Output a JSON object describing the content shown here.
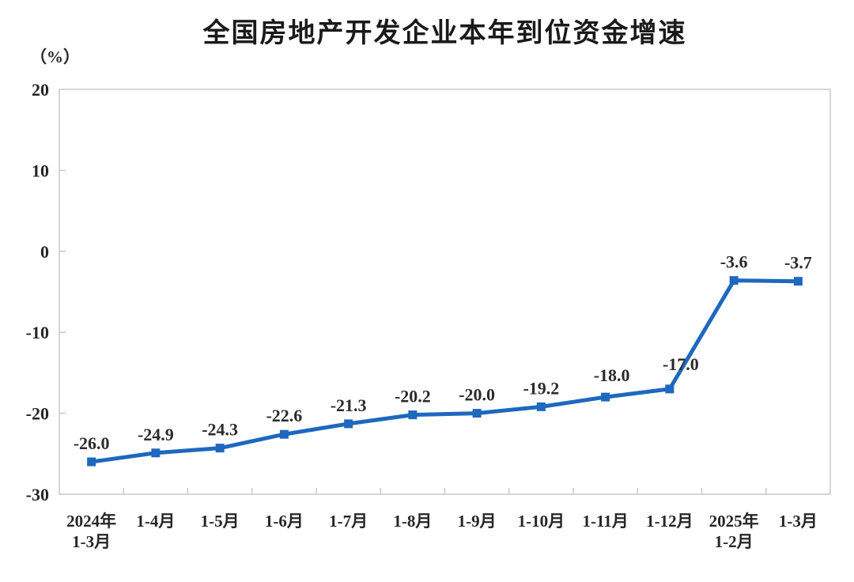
{
  "chart_data": {
    "type": "line",
    "title": "全国房地产开发企业本年到位资金增速",
    "unit_label": "（%）",
    "categories": [
      [
        "2024年",
        "1-3月"
      ],
      [
        "1-4月"
      ],
      [
        "1-5月"
      ],
      [
        "1-6月"
      ],
      [
        "1-7月"
      ],
      [
        "1-8月"
      ],
      [
        "1-9月"
      ],
      [
        "1-10月"
      ],
      [
        "1-11月"
      ],
      [
        "1-12月"
      ],
      [
        "2025年",
        "1-2月"
      ],
      [
        "1-3月"
      ]
    ],
    "values": [
      -26.0,
      -24.9,
      -24.3,
      -22.6,
      -21.3,
      -20.2,
      -20.0,
      -19.2,
      -18.0,
      -17.0,
      -3.6,
      -3.7
    ],
    "point_labels": [
      "-26.0",
      "-24.9",
      "-24.3",
      "-22.6",
      "-21.3",
      "-20.2",
      "-20.0",
      "-19.2",
      "-18.0",
      "-17.0",
      "-3.6",
      "-3.7"
    ],
    "xlabel": "",
    "ylabel": "（%）",
    "ylim": [
      -30,
      20
    ],
    "yticks": [
      20,
      10,
      0,
      -10,
      -20,
      -30
    ],
    "grid": false,
    "legend": null,
    "marker": "square",
    "colors": {
      "line": "#1e68be",
      "axis": "#c8c8c8",
      "text": "#262626"
    }
  }
}
